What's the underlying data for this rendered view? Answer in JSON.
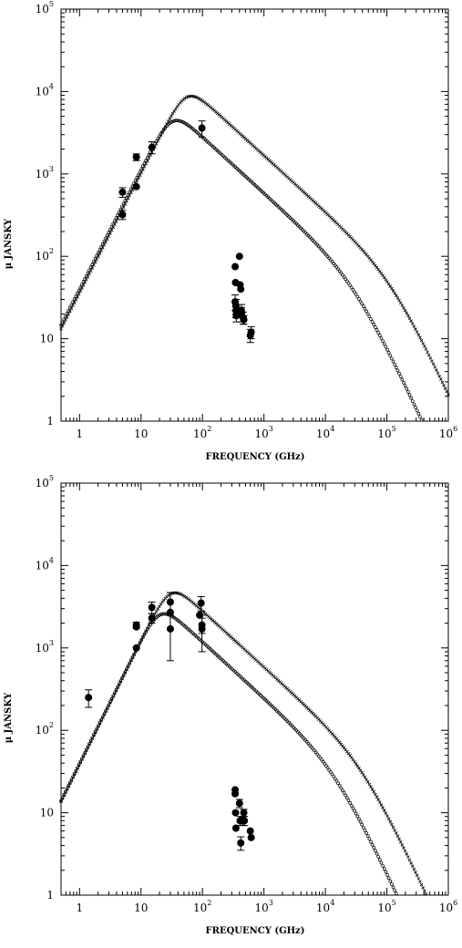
{
  "chart_data": [
    {
      "type": "scatter",
      "xlabel": "FREQUENCY (GHz)",
      "ylabel": "μ JANSKY",
      "xscale": "log",
      "yscale": "log",
      "xlim": [
        0.5,
        1000000
      ],
      "ylim": [
        1,
        100000
      ],
      "grid": false,
      "x_ticks": [
        {
          "value": 1,
          "base": "1",
          "exp": ""
        },
        {
          "value": 10,
          "base": "10",
          "exp": ""
        },
        {
          "value": 100,
          "base": "10",
          "exp": "2"
        },
        {
          "value": 1000,
          "base": "10",
          "exp": "3"
        },
        {
          "value": 10000,
          "base": "10",
          "exp": "4"
        },
        {
          "value": 100000,
          "base": "10",
          "exp": "5"
        },
        {
          "value": 1000000,
          "base": "10",
          "exp": "6"
        }
      ],
      "y_ticks": [
        {
          "value": 1,
          "base": "1",
          "exp": ""
        },
        {
          "value": 10,
          "base": "10",
          "exp": ""
        },
        {
          "value": 100,
          "base": "10",
          "exp": "2"
        },
        {
          "value": 1000,
          "base": "10",
          "exp": "3"
        },
        {
          "value": 10000,
          "base": "10",
          "exp": "4"
        },
        {
          "value": 100000,
          "base": "10",
          "exp": "5"
        }
      ],
      "models": [
        {
          "marker": "cross",
          "peak_freq": 55,
          "peak_flux": 8500,
          "rise_slope": 1.45,
          "fall_slope": -0.68,
          "break_freq": 120000,
          "break_slope": -1.6
        },
        {
          "marker": "circle",
          "peak_freq": 32,
          "peak_flux": 4300,
          "rise_slope": 1.45,
          "fall_slope": -0.68,
          "break_freq": 30000,
          "break_slope": -1.6
        }
      ],
      "points": [
        {
          "x": 5,
          "y": 600,
          "err": 80
        },
        {
          "x": 5,
          "y": 320,
          "err": 40
        },
        {
          "x": 8.4,
          "y": 1600,
          "err": 150
        },
        {
          "x": 8.4,
          "y": 700,
          "err": 0
        },
        {
          "x": 15,
          "y": 2100,
          "err": 350
        },
        {
          "x": 98,
          "y": 3600,
          "err": 800
        },
        {
          "x": 340,
          "y": 75,
          "err": 0
        },
        {
          "x": 345,
          "y": 48,
          "err": 0
        },
        {
          "x": 340,
          "y": 28,
          "err": 6
        },
        {
          "x": 350,
          "y": 25,
          "err": 5
        },
        {
          "x": 350,
          "y": 22,
          "err": 4
        },
        {
          "x": 355,
          "y": 19,
          "err": 3
        },
        {
          "x": 400,
          "y": 100,
          "err": 0
        },
        {
          "x": 410,
          "y": 45,
          "err": 0
        },
        {
          "x": 420,
          "y": 40,
          "err": 0
        },
        {
          "x": 430,
          "y": 20,
          "err": 4
        },
        {
          "x": 430,
          "y": 22,
          "err": 4
        },
        {
          "x": 460,
          "y": 18,
          "err": 3
        },
        {
          "x": 470,
          "y": 17,
          "err": 2
        },
        {
          "x": 600,
          "y": 11,
          "err": 2
        },
        {
          "x": 620,
          "y": 12,
          "err": 2
        }
      ]
    },
    {
      "type": "scatter",
      "xlabel": "FREQUENCY (GHz)",
      "ylabel": "μ JANSKY",
      "xscale": "log",
      "yscale": "log",
      "xlim": [
        0.5,
        1000000
      ],
      "ylim": [
        1,
        100000
      ],
      "grid": false,
      "x_ticks": [
        {
          "value": 1,
          "base": "1",
          "exp": ""
        },
        {
          "value": 10,
          "base": "10",
          "exp": ""
        },
        {
          "value": 100,
          "base": "10",
          "exp": "2"
        },
        {
          "value": 1000,
          "base": "10",
          "exp": "3"
        },
        {
          "value": 10000,
          "base": "10",
          "exp": "4"
        },
        {
          "value": 100000,
          "base": "10",
          "exp": "5"
        },
        {
          "value": 1000000,
          "base": "10",
          "exp": "6"
        }
      ],
      "y_ticks": [
        {
          "value": 1,
          "base": "1",
          "exp": ""
        },
        {
          "value": 10,
          "base": "10",
          "exp": ""
        },
        {
          "value": 100,
          "base": "10",
          "exp": "2"
        },
        {
          "value": 1000,
          "base": "10",
          "exp": "3"
        },
        {
          "value": 10000,
          "base": "10",
          "exp": "4"
        },
        {
          "value": 100000,
          "base": "10",
          "exp": "5"
        }
      ],
      "models": [
        {
          "marker": "cross",
          "peak_freq": 30,
          "peak_flux": 4500,
          "rise_slope": 1.5,
          "fall_slope": -0.68,
          "break_freq": 40000,
          "break_slope": -1.6
        },
        {
          "marker": "circle",
          "peak_freq": 20,
          "peak_flux": 2500,
          "rise_slope": 1.5,
          "fall_slope": -0.68,
          "break_freq": 15000,
          "break_slope": -1.6
        }
      ],
      "points": [
        {
          "x": 1.4,
          "y": 250,
          "err": 60
        },
        {
          "x": 8.4,
          "y": 1900,
          "err": 150
        },
        {
          "x": 8.4,
          "y": 1800,
          "err": 0
        },
        {
          "x": 8.4,
          "y": 1000,
          "err": 0
        },
        {
          "x": 15,
          "y": 3100,
          "err": 500
        },
        {
          "x": 15,
          "y": 2300,
          "err": 300
        },
        {
          "x": 30,
          "y": 3600,
          "err": 1100
        },
        {
          "x": 30,
          "y": 2700,
          "err": 0
        },
        {
          "x": 30,
          "y": 1700,
          "err": 1000
        },
        {
          "x": 90,
          "y": 2500,
          "err": 0
        },
        {
          "x": 95,
          "y": 3500,
          "err": 700
        },
        {
          "x": 98,
          "y": 1900,
          "err": 400
        },
        {
          "x": 98,
          "y": 1700,
          "err": 800
        },
        {
          "x": 340,
          "y": 19,
          "err": 0
        },
        {
          "x": 340,
          "y": 17,
          "err": 0
        },
        {
          "x": 345,
          "y": 10,
          "err": 0
        },
        {
          "x": 350,
          "y": 6.5,
          "err": 0
        },
        {
          "x": 400,
          "y": 13,
          "err": 1.5
        },
        {
          "x": 410,
          "y": 8,
          "err": 1
        },
        {
          "x": 420,
          "y": 4.3,
          "err": 0.8
        },
        {
          "x": 450,
          "y": 8,
          "err": 1
        },
        {
          "x": 470,
          "y": 10,
          "err": 1
        },
        {
          "x": 480,
          "y": 8,
          "err": 1
        },
        {
          "x": 600,
          "y": 6,
          "err": 0
        },
        {
          "x": 620,
          "y": 5,
          "err": 0
        }
      ]
    }
  ]
}
